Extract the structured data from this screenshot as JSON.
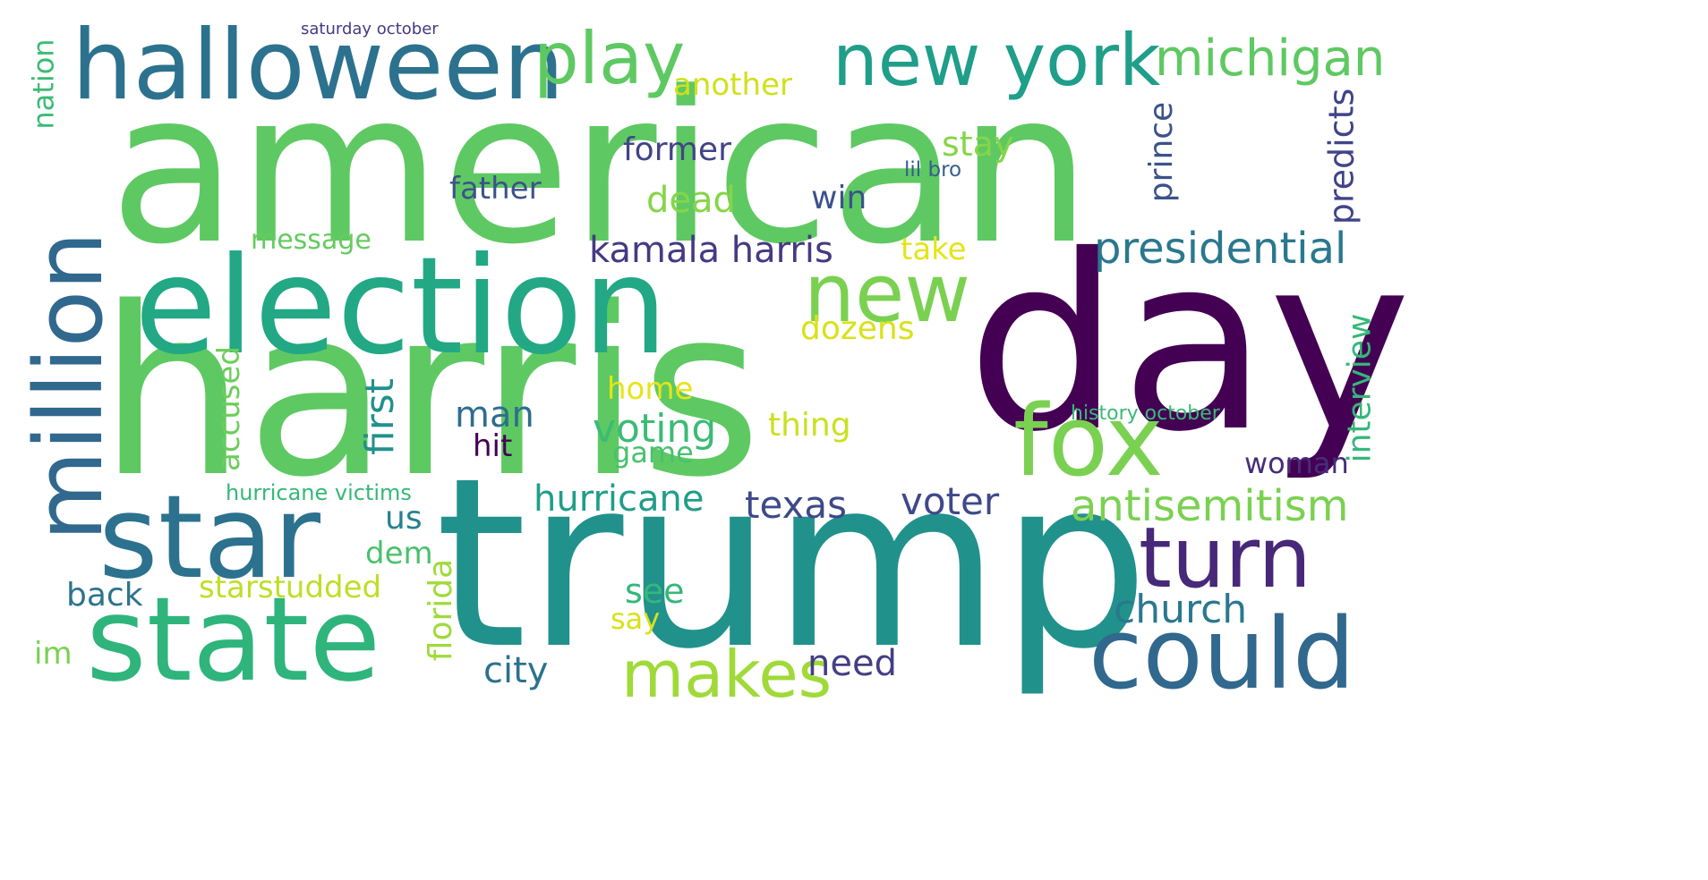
{
  "word_cloud": {
    "words": [
      {
        "text": "american",
        "color": "#5ec962"
      },
      {
        "text": "harris",
        "color": "#5ec962"
      },
      {
        "text": "trump",
        "color": "#21918c"
      },
      {
        "text": "day",
        "color": "#440154"
      },
      {
        "text": "election",
        "color": "#22a884"
      },
      {
        "text": "halloween",
        "color": "#2c728e"
      },
      {
        "text": "star",
        "color": "#2c728e"
      },
      {
        "text": "state",
        "color": "#2fb47c"
      },
      {
        "text": "million",
        "color": "#31688e"
      },
      {
        "text": "new york",
        "color": "#1f9e89"
      },
      {
        "text": "fox",
        "color": "#7ad151"
      },
      {
        "text": "could",
        "color": "#31688e"
      },
      {
        "text": "turn",
        "color": "#482878"
      },
      {
        "text": "new",
        "color": "#7ad151"
      },
      {
        "text": "play",
        "color": "#5ec962"
      },
      {
        "text": "makes",
        "color": "#a0da39"
      },
      {
        "text": "michigan",
        "color": "#5ec962"
      },
      {
        "text": "presidential",
        "color": "#2a788e"
      },
      {
        "text": "antisemitism",
        "color": "#7ad151"
      },
      {
        "text": "kamala harris",
        "color": "#443a83"
      },
      {
        "text": "hurricane",
        "color": "#1f9e89"
      },
      {
        "text": "texas",
        "color": "#3e4989"
      },
      {
        "text": "voter",
        "color": "#3e4989"
      },
      {
        "text": "church",
        "color": "#2a788e"
      },
      {
        "text": "voting",
        "color": "#3bbb75"
      },
      {
        "text": "starstudded",
        "color": "#bddf26"
      },
      {
        "text": "interview",
        "color": "#35b779"
      },
      {
        "text": "predicts",
        "color": "#414487"
      },
      {
        "text": "prince",
        "color": "#3b528b"
      },
      {
        "text": "former",
        "color": "#414487"
      },
      {
        "text": "father",
        "color": "#3b528b"
      },
      {
        "text": "dead",
        "color": "#86d549"
      },
      {
        "text": "another",
        "color": "#d0e11c"
      },
      {
        "text": "stay",
        "color": "#86d549"
      },
      {
        "text": "win",
        "color": "#3b528b"
      },
      {
        "text": "message",
        "color": "#65cb5e"
      },
      {
        "text": "take",
        "color": "#e5e419"
      },
      {
        "text": "dozens",
        "color": "#d8e219"
      },
      {
        "text": "home",
        "color": "#e7e419"
      },
      {
        "text": "thing",
        "color": "#cae11f"
      },
      {
        "text": "man",
        "color": "#2e6e8e"
      },
      {
        "text": "first",
        "color": "#21918c"
      },
      {
        "text": "hit",
        "color": "#440154"
      },
      {
        "text": "game",
        "color": "#48c16e"
      },
      {
        "text": "woman",
        "color": "#472d7b"
      },
      {
        "text": "accused",
        "color": "#6ccd5a"
      },
      {
        "text": "us",
        "color": "#26828e"
      },
      {
        "text": "dem",
        "color": "#4ac16d"
      },
      {
        "text": "see",
        "color": "#35b779"
      },
      {
        "text": "say",
        "color": "#d8e219"
      },
      {
        "text": "back",
        "color": "#2c738e"
      },
      {
        "text": "florida",
        "color": "#9fda3a"
      },
      {
        "text": "city",
        "color": "#2c728e"
      },
      {
        "text": "need",
        "color": "#433e85"
      },
      {
        "text": "im",
        "color": "#7ad151"
      },
      {
        "text": "nation",
        "color": "#3bbb75"
      },
      {
        "text": "hurricane victims",
        "color": "#35b779"
      },
      {
        "text": "history october",
        "color": "#3aba76"
      },
      {
        "text": "lil bro",
        "color": "#355f8d"
      },
      {
        "text": "saturday october",
        "color": "#443a83"
      }
    ]
  }
}
